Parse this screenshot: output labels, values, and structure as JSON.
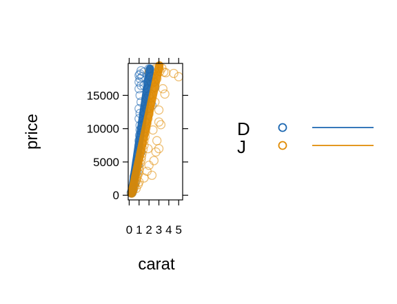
{
  "chart_data": {
    "type": "scatter",
    "xlabel": "carat",
    "ylabel": "price",
    "x_ticks": [
      0,
      1,
      2,
      3,
      4,
      5
    ],
    "y_ticks": [
      0,
      5000,
      10000,
      15000
    ],
    "x_tick_labels": [
      "0",
      "1",
      "2",
      "3",
      "4",
      "5"
    ],
    "y_tick_labels": [
      "0",
      "5000",
      "10000",
      "15000"
    ],
    "xlim": [
      -0.1,
      5.4
    ],
    "ylim": [
      -700,
      19800
    ],
    "grid": false,
    "legend_position": "right",
    "series": [
      {
        "name": "D",
        "color": "#1965B0",
        "line": [
          [
            0.25,
            300
          ],
          [
            2.1,
            19000
          ]
        ],
        "points": [
          [
            0.2,
            350
          ],
          [
            0.25,
            500
          ],
          [
            0.3,
            700
          ],
          [
            0.32,
            900
          ],
          [
            0.35,
            1200
          ],
          [
            0.4,
            1500
          ],
          [
            0.45,
            1900
          ],
          [
            0.5,
            2300
          ],
          [
            0.5,
            2800
          ],
          [
            0.55,
            3000
          ],
          [
            0.6,
            3400
          ],
          [
            0.7,
            3800
          ],
          [
            0.7,
            4200
          ],
          [
            0.75,
            4800
          ],
          [
            0.8,
            5200
          ],
          [
            0.9,
            5500
          ],
          [
            0.9,
            6200
          ],
          [
            1.0,
            6800
          ],
          [
            1.0,
            7500
          ],
          [
            1.0,
            8200
          ],
          [
            1.05,
            9000
          ],
          [
            1.1,
            9800
          ],
          [
            1.1,
            10500
          ],
          [
            1.0,
            11500
          ],
          [
            1.1,
            12300
          ],
          [
            1.0,
            13000
          ],
          [
            1.2,
            14000
          ],
          [
            1.1,
            15000
          ],
          [
            1.0,
            16000
          ],
          [
            1.2,
            16500
          ],
          [
            1.1,
            17500
          ],
          [
            1.1,
            18200
          ],
          [
            1.2,
            18700
          ],
          [
            1.0,
            17000
          ],
          [
            1.0,
            18000
          ],
          [
            1.5,
            18500
          ],
          [
            1.3,
            17800
          ],
          [
            1.5,
            16500
          ],
          [
            2.0,
            19000
          ],
          [
            2.5,
            17000
          ],
          [
            2.6,
            16200
          ],
          [
            2.3,
            13500
          ],
          [
            1.5,
            12500
          ],
          [
            2.0,
            15000
          ],
          [
            0.6,
            2000
          ],
          [
            0.3,
            400
          ],
          [
            0.9,
            4500
          ],
          [
            1.2,
            6500
          ],
          [
            1.4,
            9500
          ],
          [
            1.6,
            11000
          ],
          [
            1.8,
            13000
          ],
          [
            0.8,
            3500
          ],
          [
            1.3,
            7800
          ],
          [
            1.7,
            14500
          ],
          [
            0.5,
            1600
          ],
          [
            2.2,
            17800
          ],
          [
            1.9,
            16000
          ],
          [
            0.4,
            800
          ]
        ]
      },
      {
        "name": "J",
        "color": "#E08A00",
        "line": [
          [
            0.25,
            300
          ],
          [
            3.05,
            19500
          ]
        ],
        "points": [
          [
            0.25,
            300
          ],
          [
            0.3,
            500
          ],
          [
            0.35,
            700
          ],
          [
            0.4,
            900
          ],
          [
            0.5,
            1200
          ],
          [
            0.55,
            1500
          ],
          [
            0.6,
            1800
          ],
          [
            0.7,
            2100
          ],
          [
            0.75,
            2500
          ],
          [
            0.85,
            2900
          ],
          [
            0.95,
            3300
          ],
          [
            1.0,
            3800
          ],
          [
            1.0,
            4300
          ],
          [
            1.1,
            4800
          ],
          [
            1.2,
            5300
          ],
          [
            1.25,
            5800
          ],
          [
            1.3,
            6300
          ],
          [
            1.4,
            6900
          ],
          [
            1.5,
            7500
          ],
          [
            1.5,
            8200
          ],
          [
            1.6,
            8800
          ],
          [
            1.65,
            9500
          ],
          [
            1.7,
            10100
          ],
          [
            1.8,
            10800
          ],
          [
            1.9,
            11500
          ],
          [
            2.0,
            12200
          ],
          [
            2.0,
            13000
          ],
          [
            2.1,
            13800
          ],
          [
            2.1,
            14500
          ],
          [
            2.2,
            15200
          ],
          [
            2.3,
            16000
          ],
          [
            2.3,
            16800
          ],
          [
            2.4,
            17500
          ],
          [
            2.5,
            18200
          ],
          [
            2.5,
            18800
          ],
          [
            2.0,
            18500
          ],
          [
            2.2,
            17000
          ],
          [
            2.6,
            19000
          ],
          [
            3.0,
            19000
          ],
          [
            3.1,
            18600
          ],
          [
            3.5,
            18500
          ],
          [
            3.7,
            18400
          ],
          [
            4.5,
            18300
          ],
          [
            5.0,
            17800
          ],
          [
            3.4,
            16000
          ],
          [
            3.6,
            15200
          ],
          [
            3.0,
            11000
          ],
          [
            3.2,
            10600
          ],
          [
            3.0,
            7000
          ],
          [
            2.7,
            6500
          ],
          [
            2.5,
            5200
          ],
          [
            2.0,
            4500
          ],
          [
            1.8,
            3600
          ],
          [
            2.3,
            3000
          ],
          [
            1.5,
            2600
          ],
          [
            1.0,
            2000
          ],
          [
            0.7,
            1000
          ],
          [
            2.8,
            8200
          ],
          [
            2.8,
            17500
          ],
          [
            3.0,
            12800
          ],
          [
            2.6,
            14000
          ],
          [
            1.9,
            7000
          ],
          [
            2.4,
            9800
          ],
          [
            0.9,
            1600
          ],
          [
            3.3,
            19100
          ]
        ]
      }
    ]
  }
}
